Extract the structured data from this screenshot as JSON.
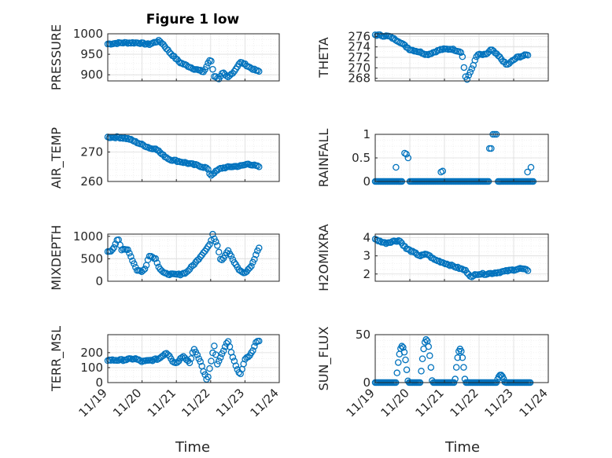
{
  "title": "Figure 1 low",
  "chart_data": {
    "type": "scatter",
    "title": "Figure 1 low",
    "marker": "open circle",
    "color": "#0072BD",
    "grid": true,
    "minor_grid": true,
    "x_ticks": [
      "11/19",
      "11/20",
      "11/21",
      "11/22",
      "11/23",
      "11/24"
    ],
    "xlim": [
      0,
      5
    ],
    "xlabel": "Time",
    "panels": [
      {
        "id": "pressure",
        "ylabel": "PRESSURE",
        "ylim": [
          885,
          1000
        ],
        "yticks": [
          900,
          950,
          1000
        ],
        "anchors": [
          [
            0,
            975
          ],
          [
            0.4,
            978
          ],
          [
            0.9,
            978
          ],
          [
            1.2,
            974
          ],
          [
            1.5,
            983
          ],
          [
            1.6,
            976
          ],
          [
            1.8,
            955
          ],
          [
            2.1,
            930
          ],
          [
            2.5,
            915
          ],
          [
            2.8,
            907
          ],
          [
            3.0,
            940
          ],
          [
            3.1,
            897
          ],
          [
            3.25,
            890
          ],
          [
            3.35,
            905
          ],
          [
            3.5,
            893
          ],
          [
            3.7,
            910
          ],
          [
            3.85,
            930
          ],
          [
            3.95,
            928
          ],
          [
            4.2,
            915
          ],
          [
            4.4,
            908
          ]
        ]
      },
      {
        "id": "theta",
        "ylabel": "THETA",
        "ylim": [
          267.5,
          276.5
        ],
        "yticks": [
          268,
          270,
          272,
          274,
          276
        ],
        "anchors": [
          [
            0,
            276.3
          ],
          [
            0.4,
            276
          ],
          [
            0.7,
            275
          ],
          [
            1.0,
            273.5
          ],
          [
            1.3,
            273
          ],
          [
            1.5,
            272.5
          ],
          [
            1.9,
            273.5
          ],
          [
            2.2,
            273.6
          ],
          [
            2.5,
            273
          ],
          [
            2.6,
            268.5
          ],
          [
            2.65,
            267.7
          ],
          [
            2.8,
            270
          ],
          [
            2.95,
            272.5
          ],
          [
            3.2,
            272.5
          ],
          [
            3.35,
            273.5
          ],
          [
            3.6,
            272
          ],
          [
            3.8,
            270.5
          ],
          [
            4.1,
            272
          ],
          [
            4.4,
            272.5
          ]
        ]
      },
      {
        "id": "air_temp",
        "ylabel": "AIR_TEMP",
        "ylim": [
          260,
          276
        ],
        "yticks": [
          260,
          270
        ],
        "anchors": [
          [
            0,
            275
          ],
          [
            0.3,
            275
          ],
          [
            0.6,
            274.5
          ],
          [
            0.9,
            273
          ],
          [
            1.1,
            272
          ],
          [
            1.3,
            271
          ],
          [
            1.4,
            271.3
          ],
          [
            1.6,
            269
          ],
          [
            1.8,
            267.5
          ],
          [
            2.2,
            266.5
          ],
          [
            2.6,
            265.5
          ],
          [
            2.9,
            264.5
          ],
          [
            3.0,
            262
          ],
          [
            3.1,
            263
          ],
          [
            3.3,
            264.5
          ],
          [
            3.6,
            265
          ],
          [
            3.9,
            265.3
          ],
          [
            4.1,
            266
          ],
          [
            4.4,
            265
          ]
        ]
      },
      {
        "id": "rainfall",
        "ylabel": "RAINFALL",
        "ylim": [
          0,
          1
        ],
        "yticks": [
          0,
          0.5,
          1
        ],
        "type": "events",
        "baseline": 0,
        "points": [
          [
            0.6,
            0.3
          ],
          [
            0.85,
            0.6
          ],
          [
            0.9,
            0.58
          ],
          [
            0.95,
            0.5
          ],
          [
            1.9,
            0.2
          ],
          [
            1.95,
            0.22
          ],
          [
            3.3,
            0.7
          ],
          [
            3.35,
            0.7
          ],
          [
            3.4,
            1.0
          ],
          [
            3.45,
            1.0
          ],
          [
            3.5,
            1.0
          ],
          [
            4.4,
            0.2
          ],
          [
            4.5,
            0.3
          ]
        ],
        "zero_ranges": [
          [
            0,
            0.8
          ],
          [
            1.0,
            3.3
          ],
          [
            3.55,
            4.6
          ]
        ]
      },
      {
        "id": "mixdepth",
        "ylabel": "MIXDEPTH",
        "ylim": [
          0,
          1050
        ],
        "yticks": [
          0,
          500,
          1000
        ],
        "anchors": [
          [
            0,
            650
          ],
          [
            0.15,
            700
          ],
          [
            0.3,
            980
          ],
          [
            0.4,
            700
          ],
          [
            0.6,
            700
          ],
          [
            0.7,
            500
          ],
          [
            0.85,
            250
          ],
          [
            1.0,
            220
          ],
          [
            1.1,
            280
          ],
          [
            1.2,
            580
          ],
          [
            1.4,
            500
          ],
          [
            1.5,
            300
          ],
          [
            1.65,
            170
          ],
          [
            1.9,
            150
          ],
          [
            2.1,
            150
          ],
          [
            2.3,
            200
          ],
          [
            2.6,
            450
          ],
          [
            2.8,
            650
          ],
          [
            3.0,
            850
          ],
          [
            3.05,
            1050
          ],
          [
            3.2,
            800
          ],
          [
            3.3,
            450
          ],
          [
            3.4,
            550
          ],
          [
            3.5,
            700
          ],
          [
            3.7,
            400
          ],
          [
            3.85,
            230
          ],
          [
            4.0,
            180
          ],
          [
            4.2,
            350
          ],
          [
            4.4,
            750
          ]
        ]
      },
      {
        "id": "h2omixra",
        "ylabel": "H2OMIXRA",
        "ylim": [
          1.6,
          4.2
        ],
        "yticks": [
          2,
          3,
          4
        ],
        "anchors": [
          [
            0,
            3.9
          ],
          [
            0.3,
            3.7
          ],
          [
            0.5,
            3.8
          ],
          [
            0.7,
            3.85
          ],
          [
            0.9,
            3.4
          ],
          [
            1.1,
            3.2
          ],
          [
            1.3,
            3.0
          ],
          [
            1.5,
            3.1
          ],
          [
            1.7,
            2.8
          ],
          [
            2.0,
            2.6
          ],
          [
            2.3,
            2.4
          ],
          [
            2.6,
            2.2
          ],
          [
            2.8,
            1.8
          ],
          [
            2.9,
            2.0
          ],
          [
            3.2,
            2.0
          ],
          [
            3.6,
            2.1
          ],
          [
            3.9,
            2.2
          ],
          [
            4.2,
            2.3
          ],
          [
            4.4,
            2.2
          ]
        ]
      },
      {
        "id": "terr_msl",
        "ylabel": "TERR_MSL",
        "ylim": [
          0,
          320
        ],
        "yticks": [
          0,
          100,
          200
        ],
        "anchors": [
          [
            0,
            150
          ],
          [
            0.4,
            150
          ],
          [
            0.8,
            160
          ],
          [
            1.0,
            140
          ],
          [
            1.3,
            150
          ],
          [
            1.5,
            160
          ],
          [
            1.7,
            200
          ],
          [
            1.8,
            180
          ],
          [
            1.9,
            140
          ],
          [
            2.0,
            130
          ],
          [
            2.2,
            180
          ],
          [
            2.4,
            130
          ],
          [
            2.5,
            230
          ],
          [
            2.7,
            140
          ],
          [
            2.8,
            70
          ],
          [
            2.9,
            10
          ],
          [
            3.0,
            130
          ],
          [
            3.1,
            250
          ],
          [
            3.2,
            120
          ],
          [
            3.35,
            200
          ],
          [
            3.5,
            280
          ],
          [
            3.6,
            200
          ],
          [
            3.75,
            100
          ],
          [
            3.85,
            50
          ],
          [
            4.0,
            150
          ],
          [
            4.2,
            200
          ],
          [
            4.35,
            280
          ]
        ]
      },
      {
        "id": "sun_flux",
        "ylabel": "SUN_FLUX",
        "ylim": [
          0,
          50
        ],
        "yticks": [
          0,
          50
        ],
        "type": "diurnal",
        "baseline": 0,
        "peaks": [
          [
            0.6,
            0.95,
            38
          ],
          [
            1.3,
            1.65,
            45
          ],
          [
            2.3,
            2.6,
            35
          ],
          [
            3.5,
            3.75,
            8
          ]
        ]
      }
    ]
  }
}
